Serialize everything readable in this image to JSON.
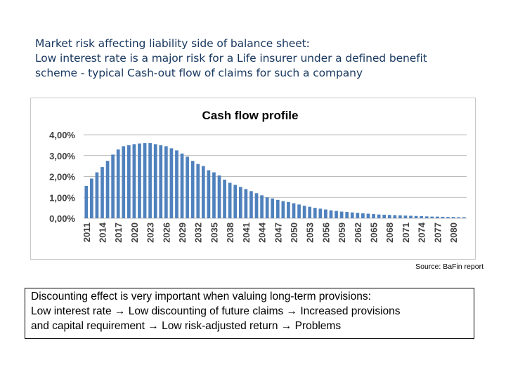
{
  "heading": {
    "line1": "Market risk affecting liability side of balance sheet:",
    "line2": "Low interest rate is a major risk for a Life insurer under a defined benefit",
    "line3": "scheme - typical Cash-out flow of claims for such a company"
  },
  "source": "Source: BaFin report",
  "note": {
    "line1": "Discounting effect is very important when valuing long-term provisions:",
    "line2": "Low interest rate → Low discounting of future claims → Increased provisions",
    "line3": "and capital requirement → Low risk-adjusted return → Problems"
  },
  "colors": {
    "bar": "#4f81bd",
    "heading": "#17375e",
    "grid": "#a6a6a6"
  },
  "chart_data": {
    "type": "bar",
    "title": "Cash flow profile",
    "xlabel": "",
    "ylabel": "",
    "ylim": [
      0,
      4
    ],
    "y_unit": "%",
    "y_tick_labels": [
      "0,00%",
      "1,00%",
      "2,00%",
      "3,00%",
      "4,00%"
    ],
    "x_start": 2011,
    "x_end": 2082,
    "x_tick_labels": [
      "2011",
      "2014",
      "2017",
      "2020",
      "2023",
      "2026",
      "2029",
      "2032",
      "2035",
      "2038",
      "2041",
      "2044",
      "2047",
      "2050",
      "2053",
      "2056",
      "2059",
      "2062",
      "2065",
      "2068",
      "2071",
      "2074",
      "2077",
      "2080"
    ],
    "values": [
      1.55,
      1.9,
      2.2,
      2.45,
      2.75,
      3.05,
      3.3,
      3.45,
      3.5,
      3.55,
      3.58,
      3.6,
      3.6,
      3.55,
      3.5,
      3.45,
      3.35,
      3.25,
      3.1,
      2.95,
      2.75,
      2.6,
      2.5,
      2.3,
      2.2,
      2.05,
      1.85,
      1.7,
      1.6,
      1.5,
      1.4,
      1.3,
      1.2,
      1.1,
      1.0,
      0.95,
      0.88,
      0.82,
      0.78,
      0.72,
      0.66,
      0.6,
      0.55,
      0.5,
      0.46,
      0.42,
      0.38,
      0.35,
      0.32,
      0.3,
      0.28,
      0.26,
      0.24,
      0.22,
      0.2,
      0.18,
      0.17,
      0.16,
      0.15,
      0.14,
      0.13,
      0.12,
      0.11,
      0.1,
      0.09,
      0.08,
      0.08,
      0.07,
      0.06,
      0.06,
      0.05,
      0.05
    ],
    "grid": true,
    "legend": "none"
  }
}
